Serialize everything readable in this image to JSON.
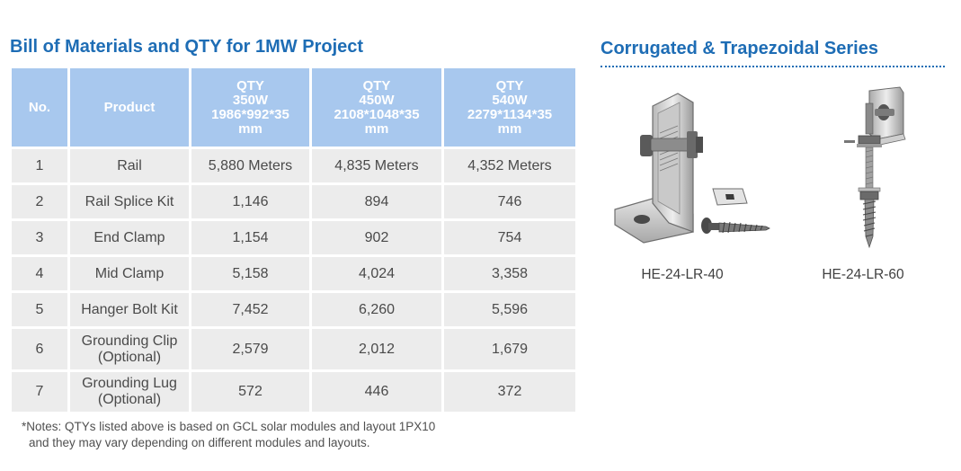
{
  "left": {
    "title": "Bill of Materials and QTY for 1MW Project",
    "headers": {
      "no": "No.",
      "product": "Product",
      "qty_cols": [
        {
          "lines": [
            "QTY",
            "350W",
            "1986*992*35",
            "mm"
          ]
        },
        {
          "lines": [
            "QTY",
            "450W",
            "2108*1048*35",
            "mm"
          ]
        },
        {
          "lines": [
            "QTY",
            "540W",
            "2279*1134*35",
            "mm"
          ]
        }
      ]
    },
    "rows": [
      {
        "no": "1",
        "product": [
          "Rail"
        ],
        "q350": "5,880 Meters",
        "q450": "4,835 Meters",
        "q540": "4,352 Meters"
      },
      {
        "no": "2",
        "product": [
          "Rail Splice Kit"
        ],
        "q350": "1,146",
        "q450": "894",
        "q540": "746"
      },
      {
        "no": "3",
        "product": [
          "End Clamp"
        ],
        "q350": "1,154",
        "q450": "902",
        "q540": "754"
      },
      {
        "no": "4",
        "product": [
          "Mid Clamp"
        ],
        "q350": "5,158",
        "q450": "4,024",
        "q540": "3,358"
      },
      {
        "no": "5",
        "product": [
          "Hanger Bolt Kit"
        ],
        "q350": "7,452",
        "q450": "6,260",
        "q540": "5,596"
      },
      {
        "no": "6",
        "product": [
          "Grounding Clip",
          "(Optional)"
        ],
        "q350": "2,579",
        "q450": "2,012",
        "q540": "1,679"
      },
      {
        "no": "7",
        "product": [
          "Grounding Lug",
          "(Optional)"
        ],
        "q350": "572",
        "q450": "446",
        "q540": "372"
      }
    ],
    "notes": [
      "*Notes: QTYs listed above is based on GCL solar modules and layout 1PX10",
      "and they may vary depending on different modules and layouts."
    ]
  },
  "right": {
    "title": "Corrugated & Trapezoidal Series",
    "products": [
      {
        "caption": "HE-24-LR-40",
        "icon": "l-bracket-with-screw-icon"
      },
      {
        "caption": "HE-24-LR-60",
        "icon": "hanger-bolt-with-bracket-icon"
      }
    ]
  },
  "colors": {
    "title_blue": "#1e6db5",
    "header_fill": "#a8c8ee",
    "cell_fill": "#ececec"
  }
}
